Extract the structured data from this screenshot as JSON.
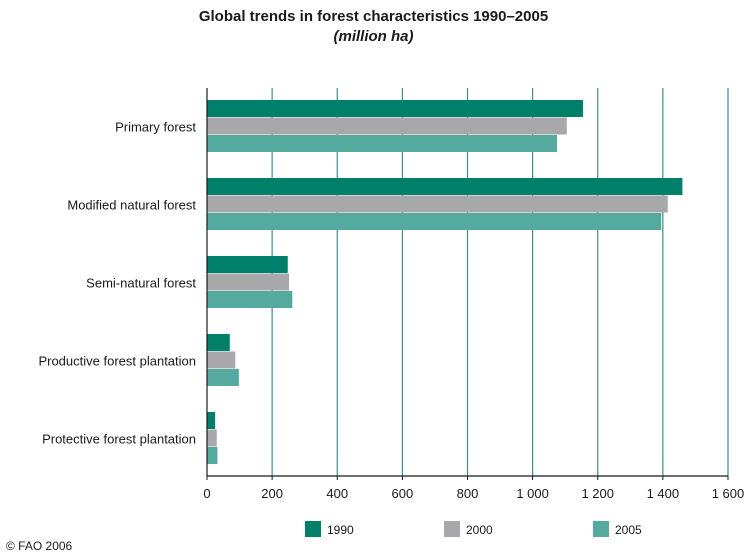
{
  "chart_data": {
    "type": "bar",
    "orientation": "horizontal",
    "title": "Global trends in forest characteristics 1990–2005",
    "subtitle": "(million ha)",
    "categories": [
      "Primary forest",
      "Modified natural forest",
      "Semi-natural forest",
      "Productive forest plantation",
      "Protective forest plantation"
    ],
    "series": [
      {
        "name": "1990",
        "color": "#00806a",
        "values": [
          1155,
          1460,
          248,
          70,
          25
        ]
      },
      {
        "name": "2000",
        "color": "#a8a8ab",
        "values": [
          1105,
          1415,
          252,
          87,
          30
        ]
      },
      {
        "name": "2005",
        "color": "#55aaa0",
        "values": [
          1075,
          1395,
          262,
          98,
          32
        ]
      }
    ],
    "xlim": [
      0,
      1600
    ],
    "xticks": [
      0,
      200,
      400,
      600,
      800,
      1000,
      1200,
      1400,
      1600
    ],
    "xtick_labels": [
      "0",
      "200",
      "400",
      "600",
      "800",
      "1 000",
      "1 200",
      "1 400",
      "1 600"
    ],
    "grid": true,
    "legend": "bottom"
  },
  "credit": "© FAO 2006"
}
